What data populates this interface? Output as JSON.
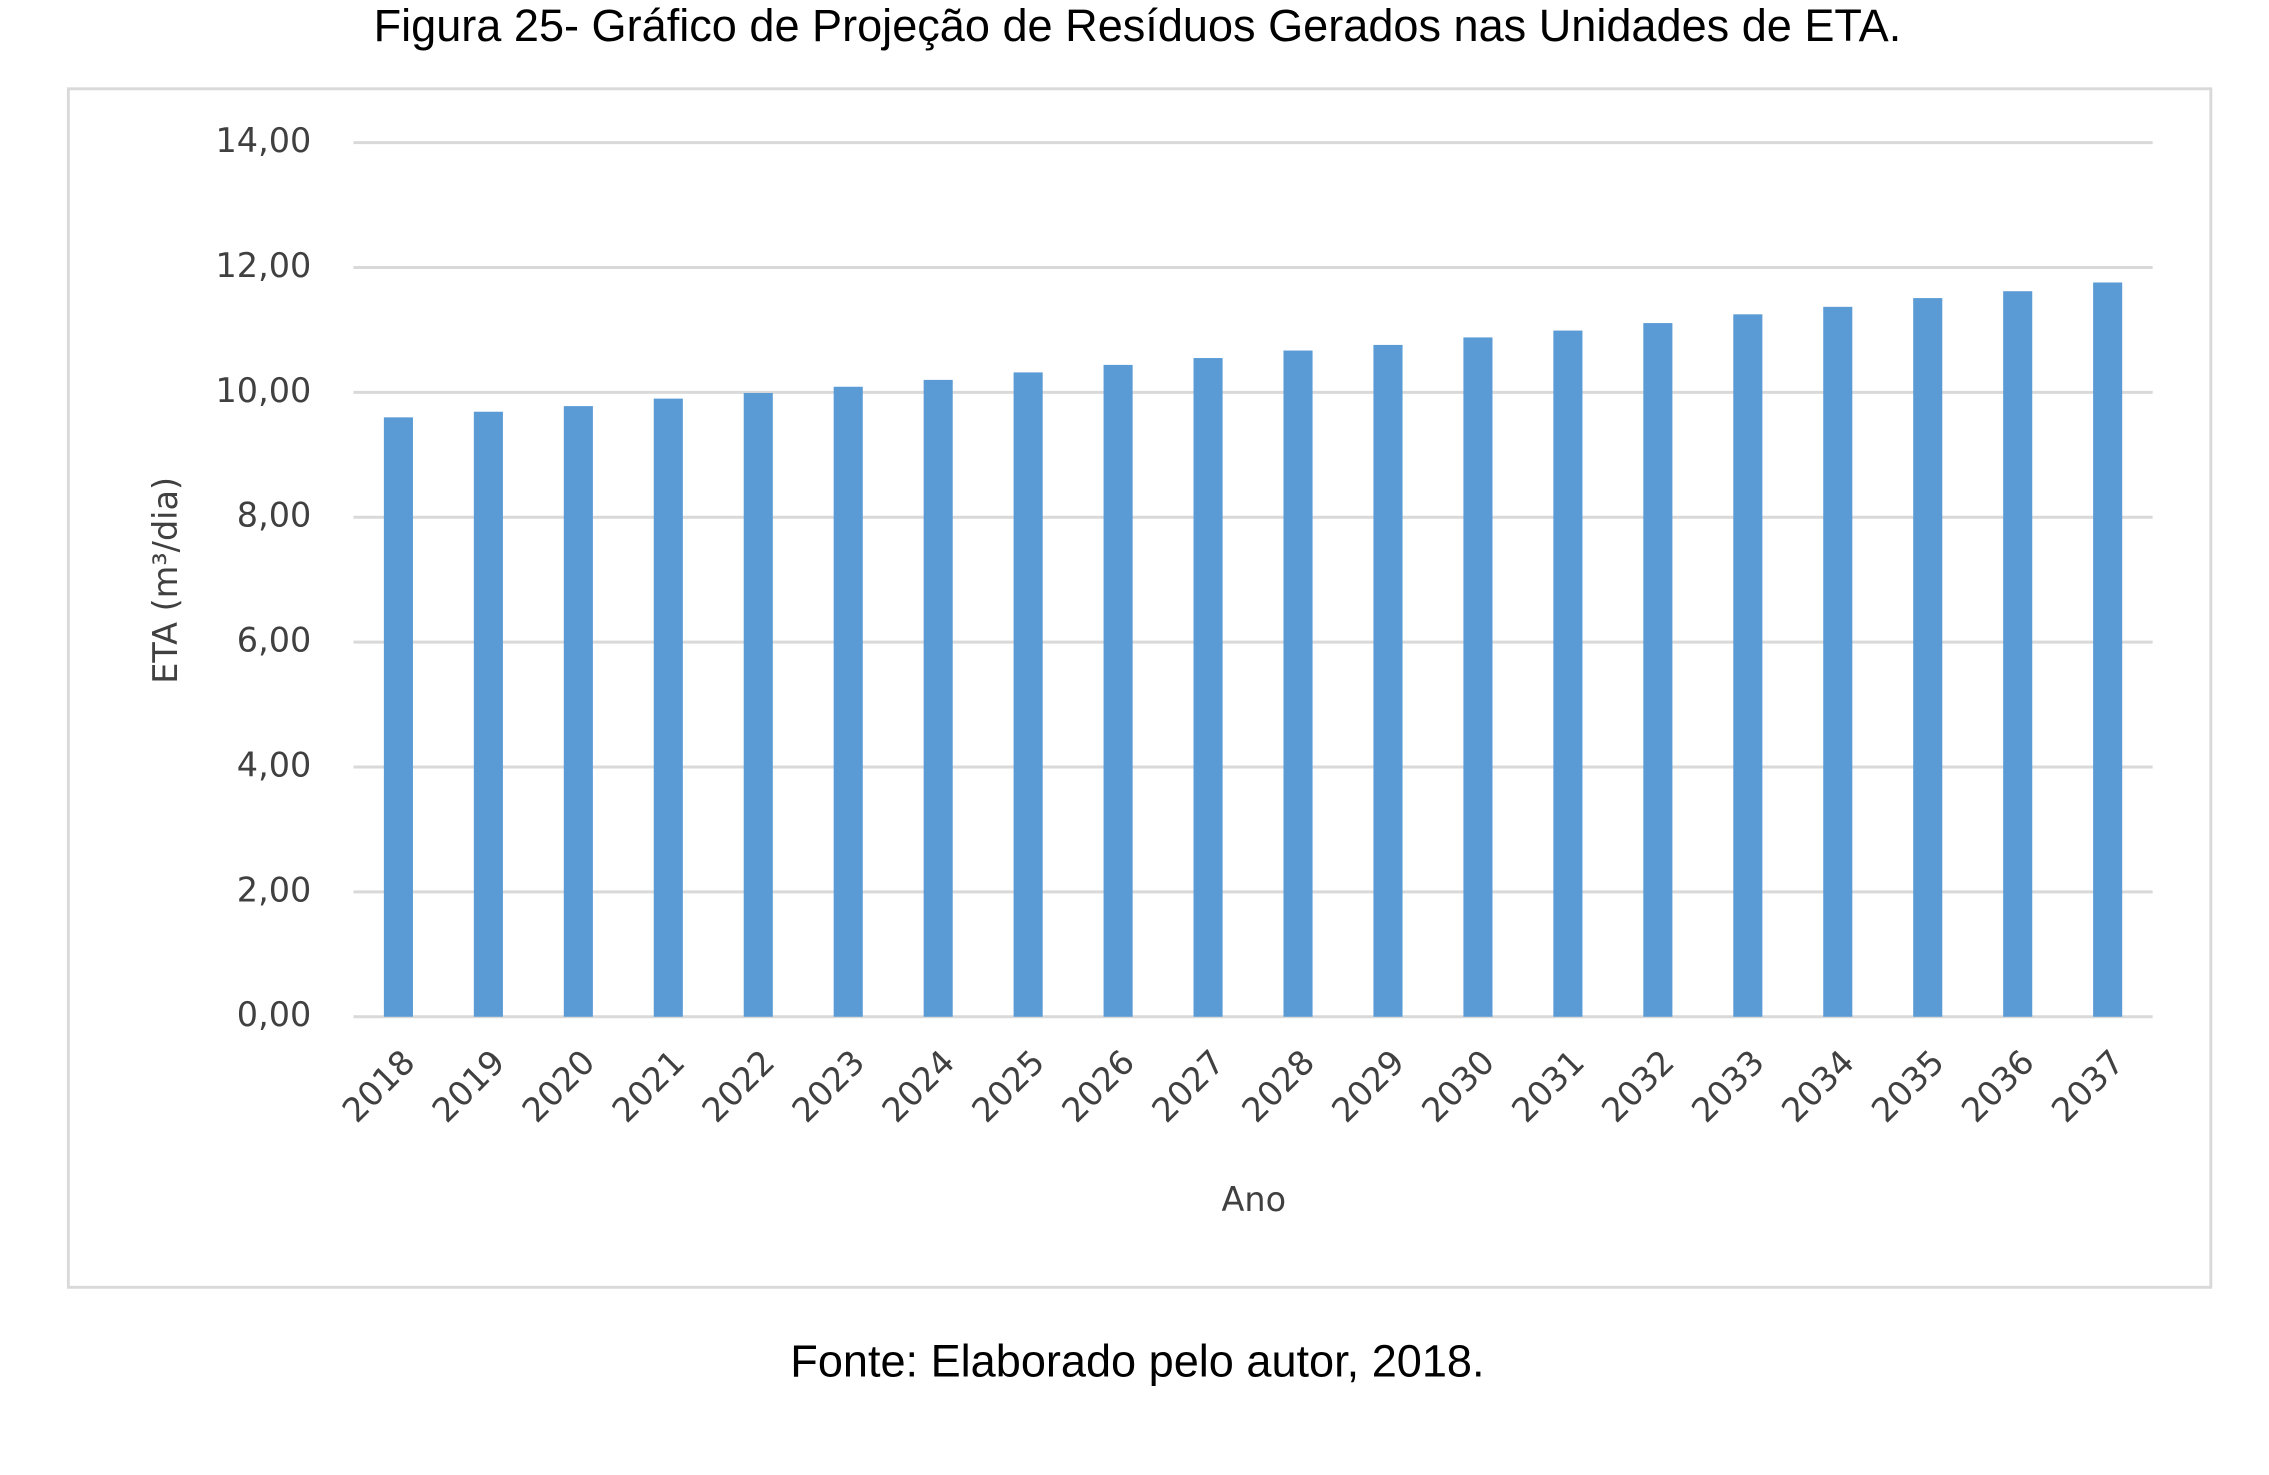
{
  "chart_data": {
    "type": "bar",
    "title": "Figura 25- Gráfico de Projeção de Resíduos Gerados nas Unidades de ETA.",
    "caption": "Fonte: Elaborado pelo autor, 2018.",
    "x_label": "Ano",
    "y_label": "ETA (m³/dia)",
    "categories": [
      "2018",
      "2019",
      "2020",
      "2021",
      "2022",
      "2023",
      "2024",
      "2025",
      "2026",
      "2027",
      "2028",
      "2029",
      "2030",
      "2031",
      "2032",
      "2033",
      "2034",
      "2035",
      "2036",
      "2037"
    ],
    "values": [
      9.6,
      9.69,
      9.78,
      9.9,
      9.99,
      10.09,
      10.2,
      10.32,
      10.44,
      10.55,
      10.67,
      10.76,
      10.88,
      10.99,
      11.11,
      11.25,
      11.37,
      11.51,
      11.62,
      11.76
    ],
    "color": "#5b9bd5",
    "ylim": [
      0,
      14
    ],
    "yticks": [
      {
        "value": 0,
        "label": "0,00"
      },
      {
        "value": 2,
        "label": "2,00"
      },
      {
        "value": 4,
        "label": "4,00"
      },
      {
        "value": 6,
        "label": "6,00"
      },
      {
        "value": 8,
        "label": "8,00"
      },
      {
        "value": 10,
        "label": "10,00"
      },
      {
        "value": 12,
        "label": "12,00"
      },
      {
        "value": 14,
        "label": "14,00"
      }
    ],
    "grid": true
  }
}
